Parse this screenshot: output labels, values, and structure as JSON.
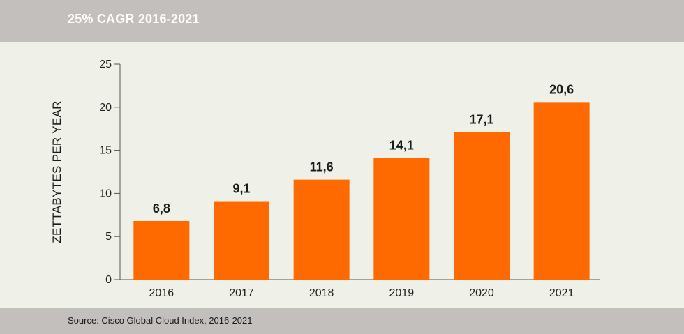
{
  "header": {
    "title": "25% CAGR 2016-2021"
  },
  "footer": {
    "source": "Source: Cisco Global Cloud Index, 2016-2021"
  },
  "colors": {
    "bar": "#ff6a00",
    "header_bg": "#c3bfbc",
    "plot_bg": "#eff0e8",
    "axis": "#555555"
  },
  "chart_data": {
    "type": "bar",
    "title": "25% CAGR 2016-2021",
    "xlabel": "",
    "ylabel": "ZETTABYTES PER YEAR",
    "categories": [
      "2016",
      "2017",
      "2018",
      "2019",
      "2020",
      "2021"
    ],
    "values": [
      6.8,
      9.1,
      11.6,
      14.1,
      17.1,
      20.6
    ],
    "value_labels": [
      "6,8",
      "9,1",
      "11,6",
      "14,1",
      "17,1",
      "20,6"
    ],
    "ylim": [
      0,
      25
    ],
    "yticks": [
      0,
      5,
      10,
      15,
      20,
      25
    ],
    "grid": false
  }
}
